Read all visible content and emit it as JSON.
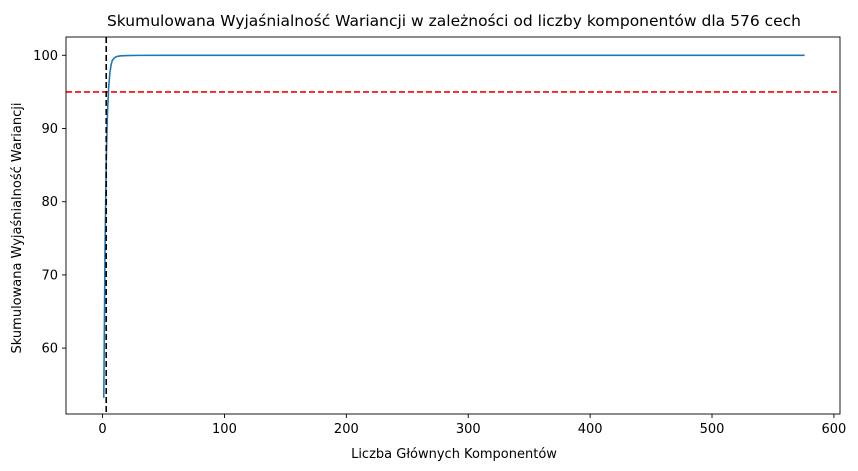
{
  "chart_data": {
    "type": "line",
    "title": "Skumulowana Wyjaśnialność Wariancji w zależności od liczby komponentów dla 576 cech",
    "xlabel": "Liczba Głównych Komponentów",
    "ylabel": "Skumulowana Wyjaśnialność  Wariancji",
    "xlim": [
      -30,
      605
    ],
    "ylim": [
      51,
      102.5
    ],
    "xticks": [
      0,
      100,
      200,
      300,
      400,
      500,
      600
    ],
    "yticks": [
      60,
      70,
      80,
      90,
      100
    ],
    "grid": false,
    "series": [
      {
        "color": "#1f77b4",
        "x": [
          1,
          2,
          3,
          4,
          5,
          6,
          7,
          8,
          10,
          12,
          15,
          20,
          30,
          50,
          100,
          200,
          300,
          400,
          500,
          576
        ],
        "y": [
          53.2,
          73.0,
          85.5,
          92.0,
          95.6,
          97.6,
          98.7,
          99.3,
          99.7,
          99.85,
          99.93,
          99.97,
          99.99,
          100.0,
          100.0,
          100.0,
          100.0,
          100.0,
          100.0,
          100.0
        ]
      }
    ],
    "reference_lines": [
      {
        "orientation": "horizontal",
        "value": 95,
        "color": "#ff0000",
        "style": "dashed"
      },
      {
        "orientation": "vertical",
        "value": 3,
        "color": "#000000",
        "style": "dashed"
      }
    ]
  }
}
